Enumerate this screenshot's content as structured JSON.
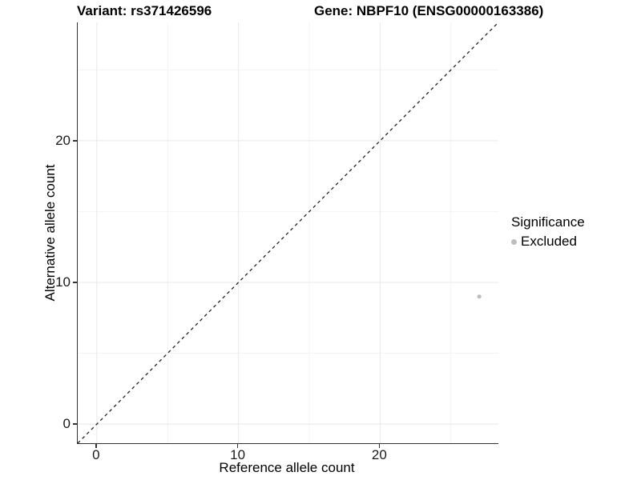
{
  "titles": {
    "variant": "Variant: rs371426596",
    "gene": "Gene: NBPF10 (ENSG00000163386)"
  },
  "axes": {
    "x_label": "Reference allele count",
    "y_label": "Alternative allele count"
  },
  "legend": {
    "title": "Significance",
    "items": [
      {
        "label": "Excluded",
        "color": "#bdbdbd"
      }
    ]
  },
  "colors": {
    "point": "#bdbdbd",
    "grid_major": "#e8e8e8",
    "grid_minor": "#f3f3f3",
    "axis_line": "#333333",
    "identity_line": "#222222"
  },
  "chart_data": {
    "type": "scatter",
    "title": "Variant: rs371426596 / Gene: NBPF10 (ENSG00000163386)",
    "xlabel": "Reference allele count",
    "ylabel": "Alternative allele count",
    "xlim": [
      -1.35,
      28.35
    ],
    "ylim": [
      -1.35,
      28.35
    ],
    "x_ticks": [
      0,
      10,
      20
    ],
    "y_ticks": [
      0,
      10,
      20
    ],
    "x_minor_ticks": [
      5,
      15,
      25
    ],
    "y_minor_ticks": [
      5,
      15,
      25
    ],
    "grid": "major+minor",
    "legend_position": "right",
    "reference_line": {
      "type": "identity",
      "style": "dashed",
      "equation": "y = x"
    },
    "series": [
      {
        "name": "Excluded",
        "color": "#bdbdbd",
        "points": [
          {
            "x": 27,
            "y": 9
          }
        ]
      }
    ]
  }
}
